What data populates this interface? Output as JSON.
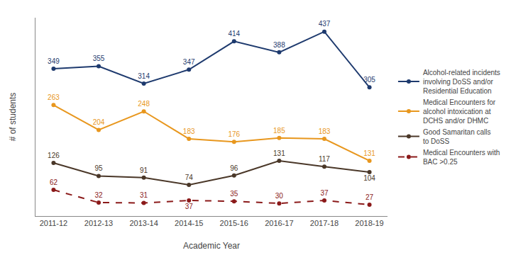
{
  "chart_data": {
    "type": "line",
    "xlabel": "Academic Year",
    "ylabel": "# of students",
    "categories": [
      "2011-12",
      "2012-13",
      "2013-14",
      "2014-15",
      "2015-16",
      "2016-17",
      "2017-18",
      "2018-19"
    ],
    "series": [
      {
        "name": "Alcohol-related incidents\ninvolving DoSS and/or\nResidential Education",
        "color": "#1e3a6e",
        "line_style": "solid",
        "marker": "circle",
        "values": [
          349,
          355,
          314,
          347,
          414,
          388,
          437,
          305
        ]
      },
      {
        "name": "Medical Encounters for\nalcohol intoxication at\nDCHS and/or DHMC",
        "color": "#e8971e",
        "line_style": "solid",
        "marker": "circle",
        "values": [
          263,
          204,
          248,
          183,
          176,
          185,
          183,
          131
        ]
      },
      {
        "name": "Good Samaritan calls\nto DoSS",
        "color": "#4a3728",
        "line_style": "solid",
        "marker": "circle",
        "values": [
          126,
          95,
          91,
          74,
          96,
          131,
          117,
          104
        ]
      },
      {
        "name": "Medical Encounters with\nBAC >0.25",
        "color": "#8b1a1a",
        "line_style": "dashed",
        "marker": "circle",
        "values": [
          62,
          32,
          31,
          37,
          35,
          30,
          37,
          27
        ]
      }
    ],
    "ylim": [
      0,
      470
    ],
    "grid": false,
    "legend": "right",
    "data_labels": true,
    "tick_labels": "x"
  }
}
